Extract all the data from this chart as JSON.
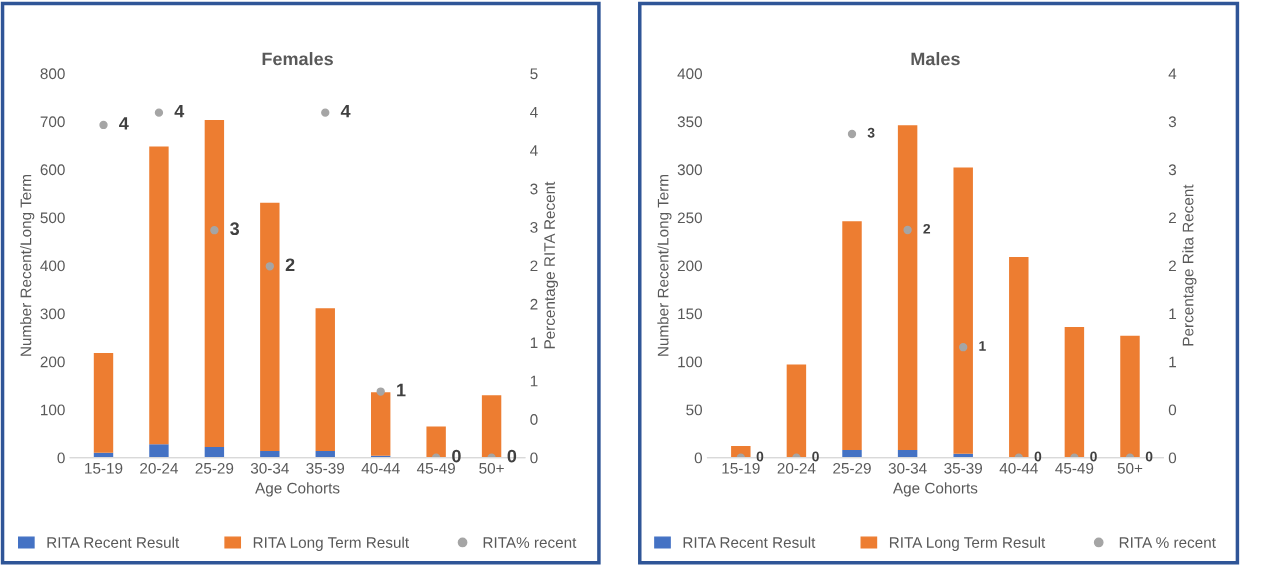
{
  "chart_data": [
    {
      "type": "bar",
      "title": "Females",
      "xlabel": "Age Cohorts",
      "ylabel": "Number Recent/Long Term",
      "y2label": "Percentage RITA Recent",
      "stacked": true,
      "legend": "bottom",
      "grid": false,
      "categories": [
        "15-19",
        "20-24",
        "25-29",
        "30-34",
        "35-39",
        "40-44",
        "45-49",
        "50+"
      ],
      "ylim": [
        0,
        800
      ],
      "yticks": [
        0,
        100,
        200,
        300,
        400,
        500,
        600,
        700,
        800
      ],
      "y2lim": [
        0,
        5
      ],
      "y2ticks": [
        {
          "value": 0,
          "label": "0"
        },
        {
          "value": 0.5,
          "label": "0"
        },
        {
          "value": 1,
          "label": "1"
        },
        {
          "value": 1.5,
          "label": "1"
        },
        {
          "value": 2,
          "label": "2"
        },
        {
          "value": 2.5,
          "label": "2"
        },
        {
          "value": 3,
          "label": "3"
        },
        {
          "value": 3.5,
          "label": "3"
        },
        {
          "value": 4,
          "label": "4"
        },
        {
          "value": 4.5,
          "label": "4"
        },
        {
          "value": 5,
          "label": "5"
        }
      ],
      "series": [
        {
          "name": "RITA Recent Result",
          "color": "#4472c4",
          "values": [
            10,
            28,
            22,
            14,
            14,
            4,
            null,
            null
          ]
        },
        {
          "name": "RITA Long Term Result",
          "color": "#ed7d31",
          "values": [
            208,
            620,
            681,
            517,
            297,
            132,
            65,
            130
          ]
        },
        {
          "name": "RITA% recent",
          "type": "scatter",
          "axis": "y2",
          "marker": "circle",
          "color": "#a5a5a5",
          "values": [
            4.33,
            4.49,
            2.96,
            2.49,
            4.49,
            0.86,
            0,
            0
          ],
          "value_labels": [
            "4",
            "4",
            "3",
            "2",
            "4",
            "1",
            "0",
            "0"
          ]
        }
      ]
    },
    {
      "type": "bar",
      "title": "Males",
      "xlabel": "Age Cohorts",
      "ylabel": "Number Recent/Long Term",
      "y2label": "Percentage Rita Recent",
      "stacked": true,
      "legend": "bottom",
      "grid": false,
      "categories": [
        "15-19",
        "20-24",
        "25-29",
        "30-34",
        "35-39",
        "40-44",
        "45-49",
        "50+"
      ],
      "ylim": [
        0,
        400
      ],
      "yticks": [
        0,
        50,
        100,
        150,
        200,
        250,
        300,
        350,
        400
      ],
      "y2lim": [
        0,
        4
      ],
      "y2ticks": [
        {
          "value": 0,
          "label": "0"
        },
        {
          "value": 0.5,
          "label": "0"
        },
        {
          "value": 1,
          "label": "1"
        },
        {
          "value": 1.5,
          "label": "1"
        },
        {
          "value": 2,
          "label": "2"
        },
        {
          "value": 2.5,
          "label": "2"
        },
        {
          "value": 3,
          "label": "3"
        },
        {
          "value": 3.5,
          "label": "3"
        },
        {
          "value": 4,
          "label": "4"
        }
      ],
      "series": [
        {
          "name": "RITA Recent Result",
          "color": "#4472c4",
          "values": [
            0,
            0,
            8,
            8,
            4,
            0,
            0,
            0
          ]
        },
        {
          "name": "RITA Long Term Result",
          "color": "#ed7d31",
          "values": [
            12,
            97,
            238,
            338,
            298,
            209,
            136,
            127
          ]
        },
        {
          "name": "RITA % recent",
          "type": "scatter",
          "axis": "y2",
          "marker": "circle",
          "color": "#a5a5a5",
          "values": [
            0,
            0,
            3.37,
            2.37,
            1.15,
            0,
            0,
            0
          ],
          "value_labels": [
            "0",
            "0",
            "3",
            "2",
            "1",
            "0",
            "0",
            "0"
          ]
        }
      ]
    }
  ]
}
